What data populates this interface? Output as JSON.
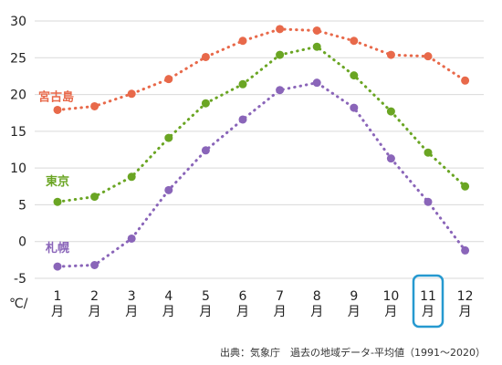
{
  "chart_data": {
    "type": "line",
    "xlabel": "",
    "ylabel": "",
    "y_unit": "℃/",
    "ylim": [
      -5,
      30
    ],
    "y_ticks": [
      "30",
      "25",
      "20",
      "15",
      "10",
      "5",
      "0",
      "-5"
    ],
    "grid": "horizontal",
    "categories": [
      {
        "num": "1",
        "unit": "月"
      },
      {
        "num": "2",
        "unit": "月"
      },
      {
        "num": "3",
        "unit": "月"
      },
      {
        "num": "4",
        "unit": "月"
      },
      {
        "num": "5",
        "unit": "月"
      },
      {
        "num": "6",
        "unit": "月"
      },
      {
        "num": "7",
        "unit": "月"
      },
      {
        "num": "8",
        "unit": "月"
      },
      {
        "num": "9",
        "unit": "月"
      },
      {
        "num": "10",
        "unit": "月"
      },
      {
        "num": "11",
        "unit": "月"
      },
      {
        "num": "12",
        "unit": "月"
      }
    ],
    "highlighted_category": "11",
    "series": [
      {
        "name": "宮古島",
        "color": "#e8694a",
        "values": [
          17.9,
          18.4,
          20.1,
          22.1,
          25.1,
          27.3,
          28.9,
          28.7,
          27.3,
          25.4,
          25.2,
          21.9
        ]
      },
      {
        "name": "東京",
        "color": "#6aa523",
        "values": [
          5.4,
          6.1,
          8.8,
          14.1,
          18.8,
          21.4,
          25.4,
          26.5,
          22.6,
          17.7,
          12.1,
          7.5
        ]
      },
      {
        "name": "札幌",
        "color": "#8a65b9",
        "values": [
          -3.4,
          -3.2,
          0.4,
          7.0,
          12.4,
          16.6,
          20.6,
          21.6,
          18.2,
          11.3,
          5.4,
          -1.2
        ]
      }
    ],
    "highlight_color": "#2699d0",
    "source": "出典：気象庁　過去の地域データ-平均値（1991〜2020）"
  }
}
